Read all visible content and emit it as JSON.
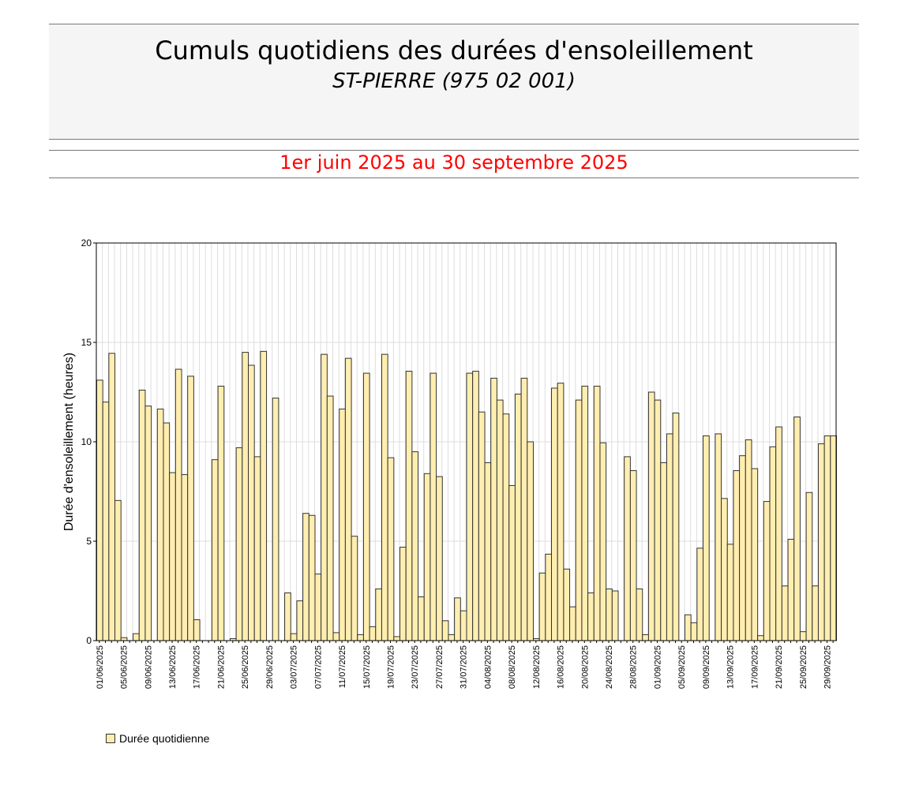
{
  "header": {
    "title": "Cumuls quotidiens des durées d'ensoleillement",
    "station": "ST-PIERRE (975 02 001)",
    "period": "1er juin 2025 au 30 septembre 2025"
  },
  "legend": {
    "label": "Durée quotidienne",
    "swatch_color": "#ffeeb0"
  },
  "colors": {
    "bar_fill": "#ffeeb0",
    "bar_stroke": "#333333",
    "grid": "#dddddd",
    "period_text": "#ff0000",
    "header_bg": "#f5f5f5"
  },
  "chart_data": {
    "type": "bar",
    "title": "Cumuls quotidiens des durées d'ensoleillement",
    "subtitle": "ST-PIERRE (975 02 001)",
    "period": "1er juin 2025 au 30 septembre 2025",
    "xlabel": "",
    "ylabel": "Durée d'ensoleillement (heures)",
    "ylim": [
      0,
      20
    ],
    "yticks": [
      0,
      5,
      10,
      15,
      20
    ],
    "grid": true,
    "legend_position": "bottom-left",
    "x_tick_labels": [
      "01/06/2025",
      "05/06/2025",
      "09/06/2025",
      "13/06/2025",
      "17/06/2025",
      "21/06/2025",
      "25/06/2025",
      "29/06/2025",
      "03/07/2025",
      "07/07/2025",
      "11/07/2025",
      "15/07/2025",
      "19/07/2025",
      "23/07/2025",
      "27/07/2025",
      "31/07/2025",
      "04/08/2025",
      "08/08/2025",
      "12/08/2025",
      "16/08/2025",
      "20/08/2025",
      "24/08/2025",
      "28/08/2025",
      "01/09/2025",
      "05/09/2025",
      "09/09/2025",
      "13/09/2025",
      "17/09/2025",
      "21/09/2025",
      "25/09/2025",
      "29/09/2025"
    ],
    "start_date": "01/06/2025",
    "end_date": "30/09/2025",
    "series": [
      {
        "name": "Durée quotidienne",
        "values": [
          13.1,
          12.0,
          14.45,
          7.05,
          0.15,
          0,
          0.35,
          12.6,
          11.8,
          0,
          11.65,
          10.95,
          8.45,
          13.65,
          8.35,
          13.3,
          1.05,
          0,
          0,
          9.1,
          12.8,
          0,
          0.1,
          9.7,
          14.5,
          13.85,
          9.25,
          14.55,
          0,
          12.2,
          0,
          2.4,
          0.35,
          2.0,
          6.4,
          6.3,
          3.35,
          14.4,
          12.3,
          0.4,
          11.65,
          14.2,
          5.25,
          0.3,
          13.45,
          0.7,
          2.6,
          14.4,
          9.2,
          0.2,
          4.7,
          13.55,
          9.5,
          2.2,
          8.4,
          13.45,
          8.25,
          1.0,
          0.3,
          2.15,
          1.5,
          13.45,
          13.55,
          11.5,
          8.95,
          13.2,
          12.1,
          11.4,
          7.8,
          12.4,
          13.2,
          10.0,
          0.1,
          3.4,
          4.35,
          12.7,
          12.95,
          3.6,
          1.7,
          12.1,
          12.8,
          2.4,
          12.8,
          9.95,
          2.6,
          2.5,
          0,
          9.25,
          8.55,
          2.6,
          0.3,
          12.5,
          12.1,
          8.95,
          10.4,
          11.45,
          0,
          1.3,
          0.9,
          4.65,
          10.3,
          0,
          10.4,
          7.15,
          4.85,
          8.55,
          9.3,
          10.1,
          8.65,
          0.25,
          7.0,
          9.75,
          10.75,
          2.75,
          5.1,
          11.25,
          0.45,
          7.45,
          2.75,
          9.9,
          10.3,
          10.3
        ]
      }
    ]
  }
}
